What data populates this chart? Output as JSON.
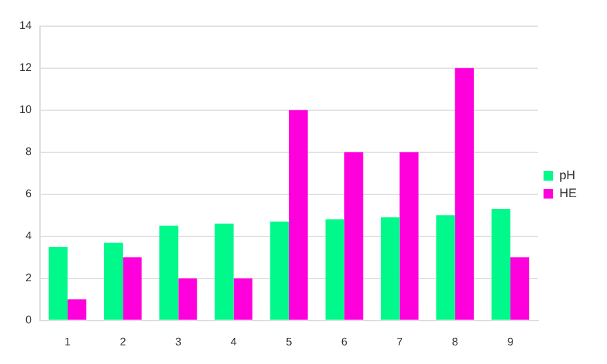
{
  "chart_data": {
    "type": "bar",
    "categories": [
      "1",
      "2",
      "3",
      "4",
      "5",
      "6",
      "7",
      "8",
      "9"
    ],
    "series": [
      {
        "name": "pH",
        "color": "#00f98a",
        "values": [
          3.5,
          3.7,
          4.5,
          4.6,
          4.7,
          4.8,
          4.9,
          5.0,
          5.3
        ]
      },
      {
        "name": "HE",
        "color": "#ff00dd",
        "values": [
          1,
          3,
          2,
          2,
          10,
          8,
          8,
          12,
          3
        ]
      }
    ],
    "ylim": [
      0,
      14
    ],
    "yticks": [
      0,
      2,
      4,
      6,
      8,
      10,
      12,
      14
    ],
    "grid": "y",
    "legend": "right"
  }
}
